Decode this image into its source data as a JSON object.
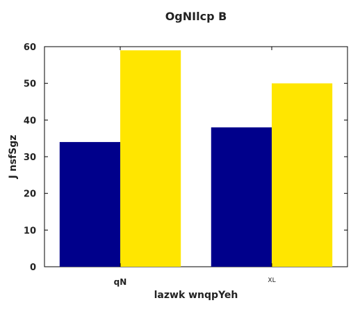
{
  "chart_data": {
    "type": "bar",
    "title": "OgNIlcp B",
    "xlabel": "lazwk wnqpYeh",
    "ylabel": "J nsfSgz",
    "categories": [
      "qN",
      "XL"
    ],
    "series": [
      {
        "values": [
          34,
          38
        ],
        "color": "#00008b"
      },
      {
        "values": [
          59,
          50
        ],
        "color": "#ffe600"
      }
    ],
    "ylim": [
      0,
      60
    ],
    "yticks": [
      0,
      10,
      20,
      30,
      40,
      50,
      60
    ],
    "grid": false,
    "legend": "none"
  }
}
